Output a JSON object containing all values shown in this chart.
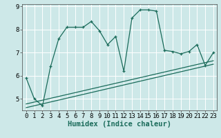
{
  "main_x": [
    0,
    1,
    2,
    3,
    4,
    5,
    6,
    7,
    8,
    9,
    10,
    11,
    12,
    13,
    14,
    15,
    16,
    17,
    18,
    19,
    20,
    21,
    22,
    23
  ],
  "main_y": [
    5.9,
    5.0,
    4.7,
    6.4,
    7.6,
    8.1,
    8.1,
    8.1,
    8.35,
    7.95,
    7.35,
    7.7,
    6.2,
    8.5,
    8.85,
    8.85,
    8.8,
    7.1,
    7.05,
    6.95,
    7.05,
    7.35,
    6.45,
    7.0
  ],
  "trend1_x": [
    0,
    23
  ],
  "trend1_y": [
    4.78,
    6.65
  ],
  "trend2_x": [
    0,
    23
  ],
  "trend2_y": [
    4.62,
    6.5
  ],
  "line_color": "#1a6b5a",
  "bg_color": "#cde8e8",
  "grid_color": "#ffffff",
  "xlabel": "Humidex (Indice chaleur)",
  "xlim": [
    -0.5,
    23.4
  ],
  "ylim": [
    4.5,
    9.1
  ],
  "yticks": [
    5,
    6,
    7,
    8,
    9
  ],
  "ytick_labels": [
    "5",
    "6",
    "7",
    "8",
    "9"
  ],
  "xticks": [
    0,
    1,
    2,
    3,
    4,
    5,
    6,
    7,
    8,
    9,
    10,
    11,
    12,
    13,
    14,
    15,
    16,
    17,
    18,
    19,
    20,
    21,
    22,
    23
  ],
  "xlabel_fontsize": 7.5,
  "tick_fontsize": 6.5
}
